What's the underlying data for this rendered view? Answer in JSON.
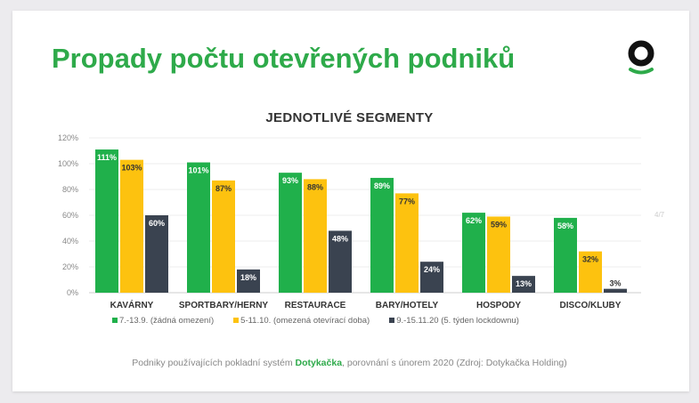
{
  "header": {
    "title": "Propady počtu otevřených podniků",
    "page_indicator": "4/7"
  },
  "footer": {
    "prefix": "Podniky používajících pokladní systém ",
    "brand": "Dotykačka",
    "suffix": ", porovnání s únorem 2020 (Zdroj: Dotykačka Holding)"
  },
  "chart_data": {
    "type": "bar",
    "title": "JEDNOTLIVÉ SEGMENTY",
    "categories": [
      "KAVÁRNY",
      "SPORTBARY/HERNY",
      "RESTAURACE",
      "BARY/HOTELY",
      "HOSPODY",
      "DISCO/KLUBY"
    ],
    "series": [
      {
        "name": "7.-13.9. (žádná omezení)",
        "color": "#20b04b",
        "values": [
          111,
          101,
          93,
          89,
          62,
          58
        ]
      },
      {
        "name": "5-11.10. (omezená otevírací doba)",
        "color": "#fdc20f",
        "values": [
          103,
          87,
          88,
          77,
          59,
          32
        ]
      },
      {
        "name": "9.-15.11.20 (5. týden lockdownu)",
        "color": "#3a4350",
        "values": [
          60,
          18,
          48,
          24,
          13,
          3
        ]
      }
    ],
    "ylim": [
      0,
      120
    ],
    "yticks": [
      "0%",
      "20%",
      "40%",
      "60%",
      "80%",
      "100%",
      "120%"
    ],
    "grid": true,
    "legend": "bottom"
  }
}
